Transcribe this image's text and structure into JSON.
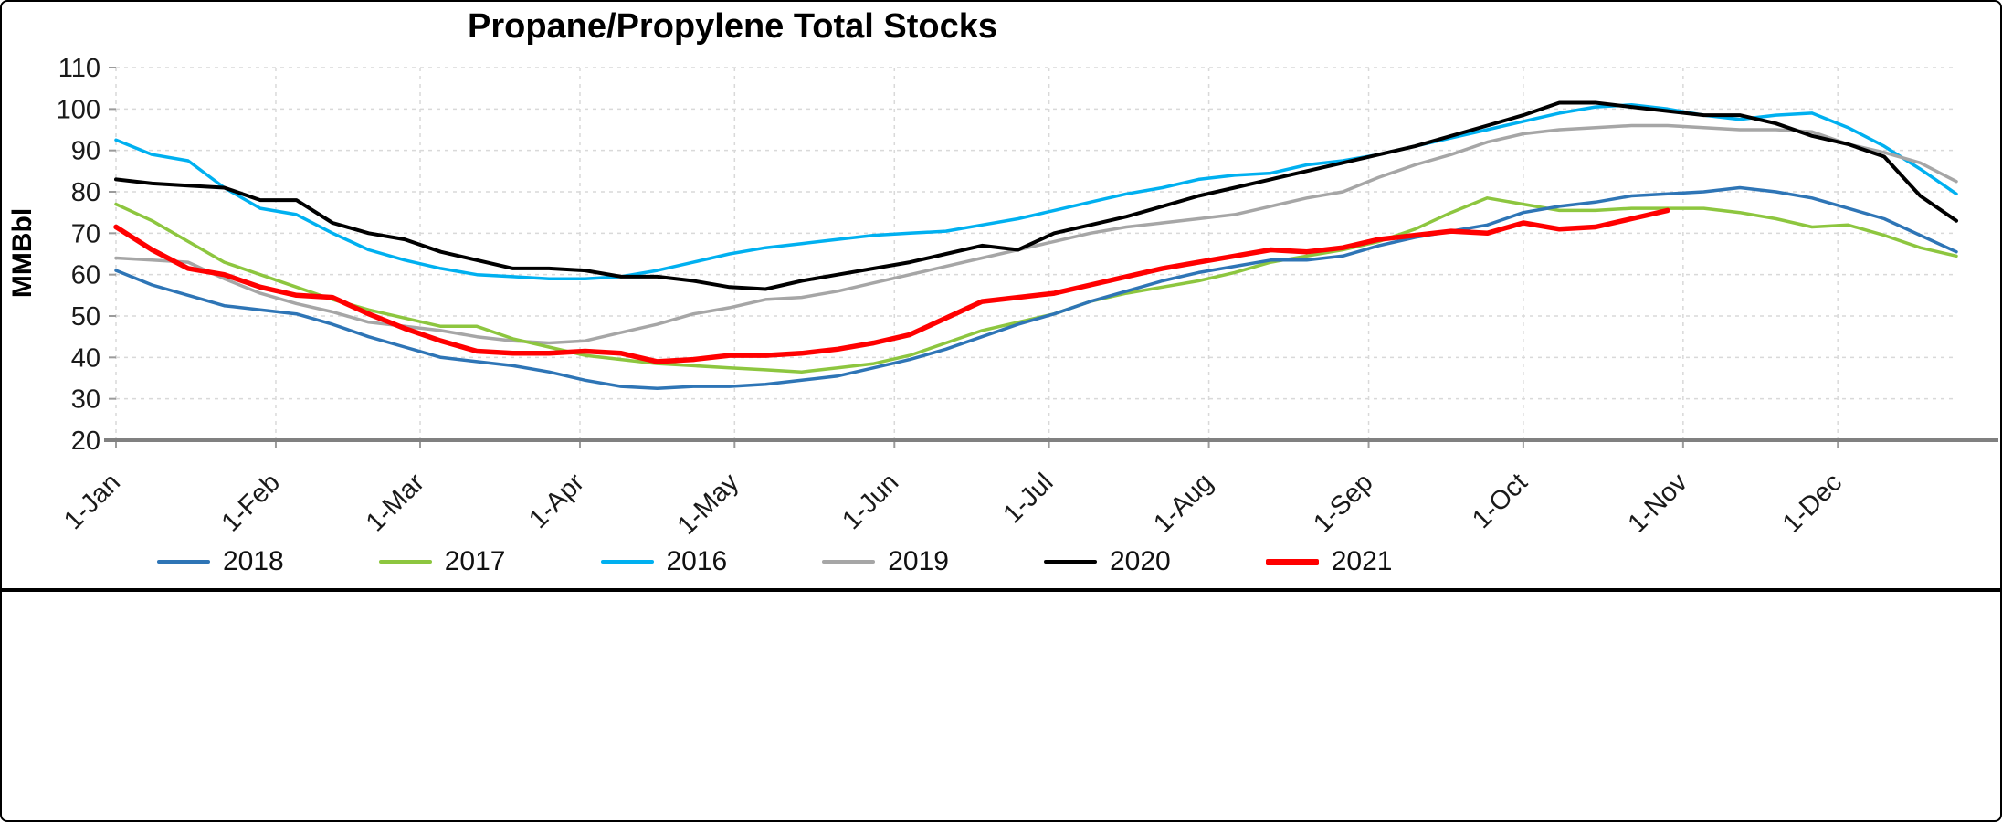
{
  "chart_data": {
    "type": "line",
    "title": "Propane/Propylene Total Stocks",
    "ylabel": "MMBbl",
    "ylim": [
      20,
      110
    ],
    "y_ticks": [
      20,
      30,
      40,
      50,
      60,
      70,
      80,
      90,
      100,
      110
    ],
    "x_tick_labels": [
      "1-Jan",
      "1-Feb",
      "1-Mar",
      "1-Apr",
      "1-May",
      "1-Jun",
      "1-Jul",
      "1-Aug",
      "1-Sep",
      "1-Oct",
      "1-Nov",
      "1-Dec"
    ],
    "x_tick_days": [
      0,
      31,
      59,
      90,
      120,
      151,
      181,
      212,
      243,
      273,
      304,
      334
    ],
    "x_domain_days": [
      0,
      357
    ],
    "x_unit": "day-of-year",
    "sample_interval_days": 7,
    "grid": "dashed",
    "legend_position": "bottom",
    "draw_order": [
      2,
      3,
      1,
      0,
      4,
      5
    ],
    "series": [
      {
        "name": "2018",
        "color": "#2E75B6",
        "width": 3.5,
        "values": [
          61,
          57.5,
          55,
          52.5,
          51.5,
          50.5,
          48,
          45,
          42.5,
          40,
          39,
          38,
          36.5,
          34.5,
          33,
          32.5,
          33,
          33,
          33.5,
          34.5,
          35.5,
          37.5,
          39.5,
          42,
          45,
          48,
          50.5,
          53.5,
          56,
          58.5,
          60.5,
          62,
          63.5,
          63.5,
          64.5,
          67,
          69,
          70.5,
          72,
          75,
          76.5,
          77.5,
          79,
          79.5,
          80,
          81,
          80,
          78.5,
          76,
          73.5,
          69.5,
          65.5
        ]
      },
      {
        "name": "2017",
        "color": "#8DC63F",
        "width": 3.5,
        "values": [
          77,
          73,
          68,
          63,
          60,
          57,
          54,
          51.5,
          49.5,
          47.5,
          47.5,
          44.5,
          42.5,
          40.5,
          39.5,
          38.5,
          38,
          37.5,
          37,
          36.5,
          37.5,
          38.5,
          40.5,
          43.5,
          46.5,
          48.5,
          50.5,
          53.5,
          55.5,
          57,
          58.5,
          60.5,
          63,
          64.5,
          66,
          68,
          71,
          75,
          78.5,
          77,
          75.5,
          75.5,
          76,
          76,
          76,
          75,
          73.5,
          71.5,
          72,
          69.5,
          66.5,
          64.5
        ]
      },
      {
        "name": "2016",
        "color": "#00B0F0",
        "width": 3.5,
        "values": [
          92.5,
          89,
          87.5,
          81,
          76,
          74.5,
          70,
          66,
          63.5,
          61.5,
          60,
          59.5,
          59,
          59,
          59.5,
          61,
          63,
          65,
          66.5,
          67.5,
          68.5,
          69.5,
          70,
          70.5,
          72,
          73.5,
          75.5,
          77.5,
          79.5,
          81,
          83,
          84,
          84.5,
          86.5,
          87.5,
          89,
          91,
          93,
          95,
          97,
          99,
          100.5,
          101,
          100,
          98.5,
          97.5,
          98.5,
          99,
          95.5,
          91,
          85.5,
          79.5
        ]
      },
      {
        "name": "2019",
        "color": "#A6A6A6",
        "width": 3.5,
        "values": [
          64,
          63.5,
          63,
          59,
          55.5,
          53,
          51,
          48.5,
          47.5,
          46.5,
          45,
          44,
          43.5,
          44,
          46,
          48,
          50.5,
          52,
          54,
          54.5,
          56,
          58,
          60,
          62,
          64,
          66,
          68,
          70,
          71.5,
          72.5,
          73.5,
          74.5,
          76.5,
          78.5,
          80,
          83.5,
          86.5,
          89,
          92,
          94,
          95,
          95.5,
          96,
          96,
          95.5,
          95,
          95,
          94.5,
          91.5,
          89.5,
          87,
          82.5
        ]
      },
      {
        "name": "2020",
        "color": "#000000",
        "width": 4,
        "values": [
          83,
          82,
          81.5,
          81,
          78,
          78,
          72.5,
          70,
          68.5,
          65.5,
          63.5,
          61.5,
          61.5,
          61,
          59.5,
          59.5,
          58.5,
          57,
          56.5,
          58.5,
          60,
          61.5,
          63,
          65,
          67,
          66,
          70,
          72,
          74,
          76.5,
          79,
          81,
          83,
          85,
          87,
          89,
          91,
          93.5,
          96,
          98.5,
          101.5,
          101.5,
          100.5,
          99.5,
          98.5,
          98.5,
          96.5,
          93.5,
          91.5,
          88.5,
          79,
          73
        ]
      },
      {
        "name": "2021",
        "color": "#FF0000",
        "width": 5.5,
        "values": [
          71.5,
          66,
          61.5,
          60,
          57,
          55,
          54.5,
          50.5,
          47,
          44,
          41.5,
          41,
          41,
          41.5,
          41,
          39,
          39.5,
          40.5,
          40.5,
          41,
          42,
          43.5,
          45.5,
          49.5,
          53.5,
          54.5,
          55.5,
          57.5,
          59.5,
          61.5,
          63,
          64.5,
          66,
          65.5,
          66.5,
          68.5,
          69.5,
          70.5,
          70,
          72.5,
          71,
          71.5,
          73.5,
          75.5
        ]
      }
    ]
  }
}
